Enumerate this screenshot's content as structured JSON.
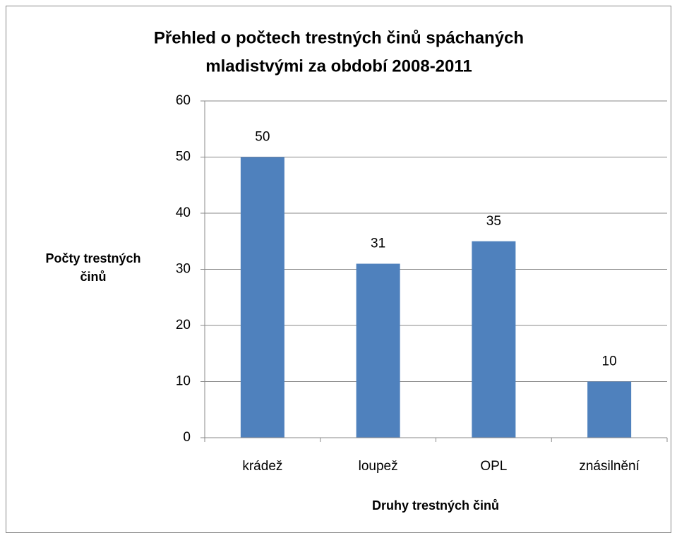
{
  "chart_data": {
    "type": "bar",
    "title": [
      "Přehled o počtech trestných činů spáchaných",
      "mladistvými za období 2008-2011"
    ],
    "x_label": "Druhy trestných činů",
    "y_label": [
      "Počty trestných",
      "činů"
    ],
    "categories": [
      "krádež",
      "loupež",
      "OPL",
      "znásilnění"
    ],
    "values": [
      50,
      31,
      35,
      10
    ],
    "color": "#4f81bd",
    "ylim": [
      0,
      60
    ],
    "yticks": [
      0,
      10,
      20,
      30,
      40,
      50,
      60
    ],
    "grid": true
  }
}
